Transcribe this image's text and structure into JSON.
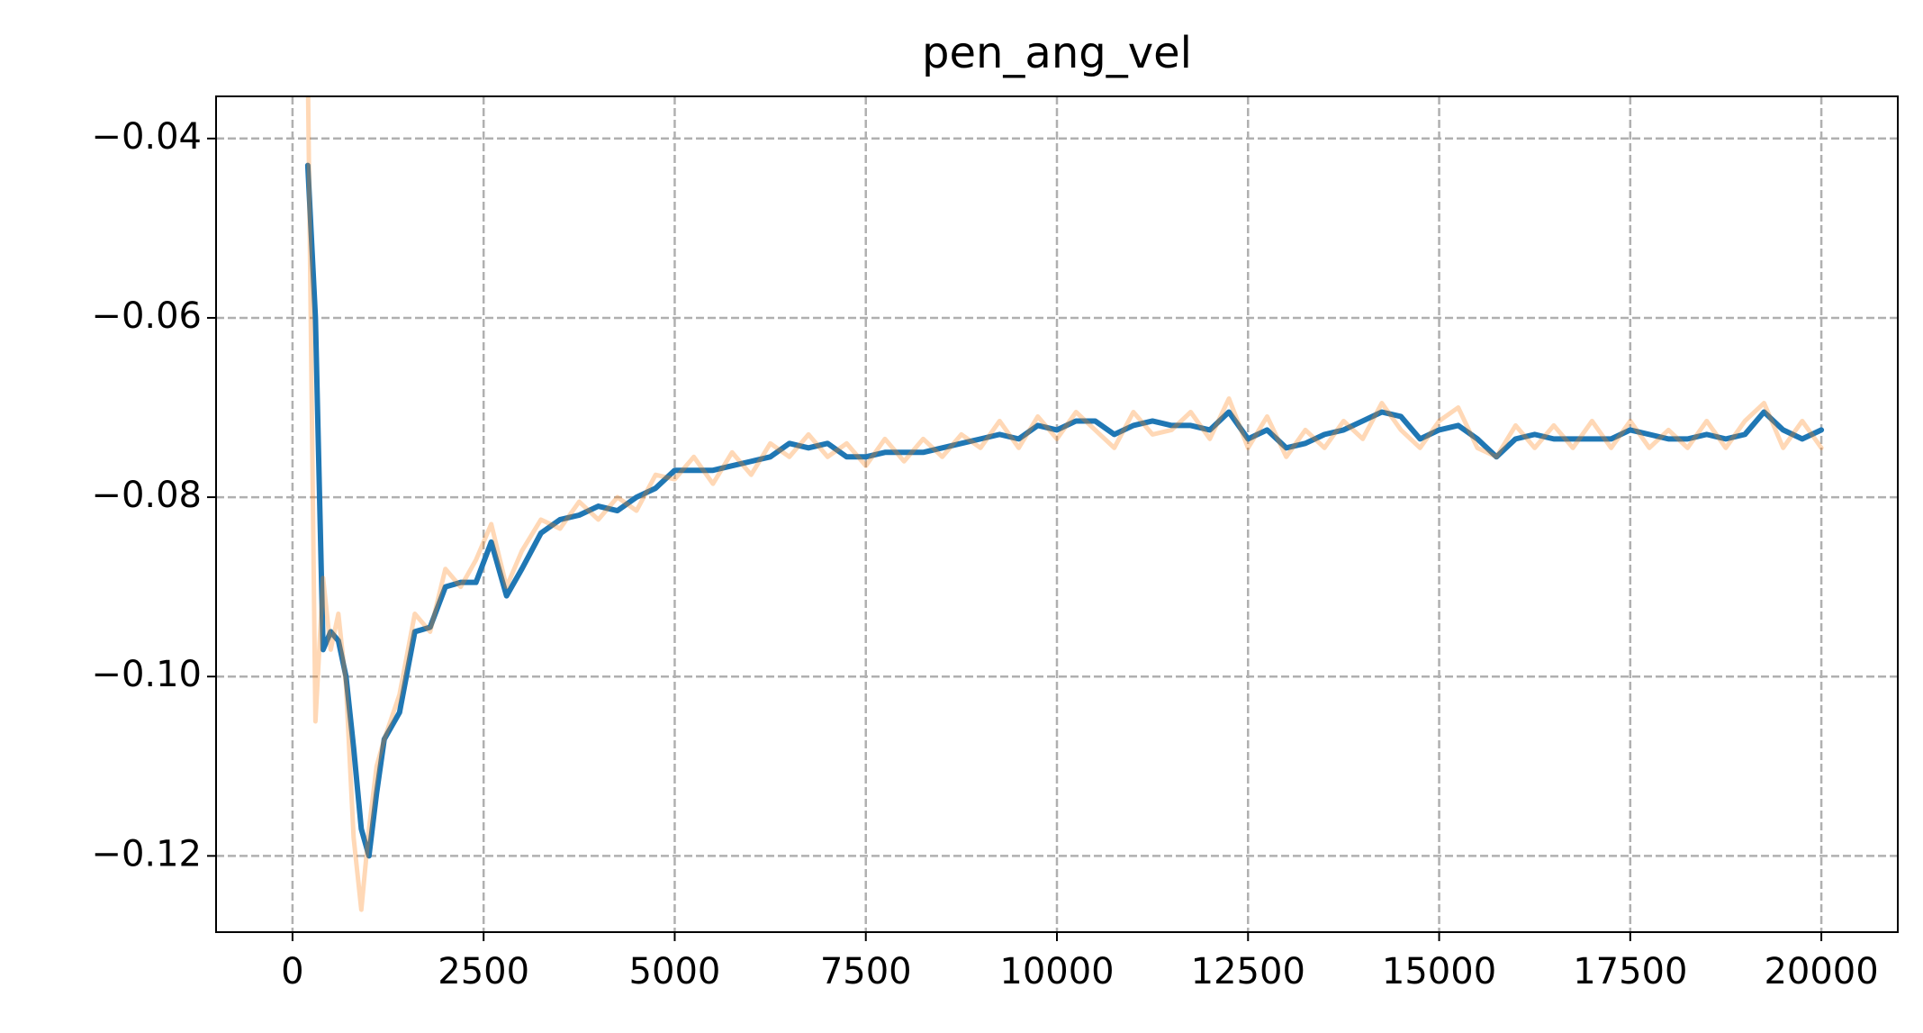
{
  "chart_data": {
    "type": "line",
    "title": "pen_ang_vel",
    "x": [
      200,
      300,
      400,
      500,
      600,
      700,
      800,
      900,
      1000,
      1100,
      1200,
      1400,
      1600,
      1800,
      2000,
      2200,
      2400,
      2600,
      2800,
      3000,
      3250,
      3500,
      3750,
      4000,
      4250,
      4500,
      4750,
      5000,
      5250,
      5500,
      5750,
      6000,
      6250,
      6500,
      6750,
      7000,
      7250,
      7500,
      7750,
      8000,
      8250,
      8500,
      8750,
      9000,
      9250,
      9500,
      9750,
      10000,
      10250,
      10500,
      10750,
      11000,
      11250,
      11500,
      11750,
      12000,
      12250,
      12500,
      12750,
      13000,
      13250,
      13500,
      13750,
      14000,
      14250,
      14500,
      14750,
      15000,
      15250,
      15500,
      15750,
      16000,
      16250,
      16500,
      16750,
      17000,
      17250,
      17500,
      17750,
      18000,
      18250,
      18500,
      18750,
      19000,
      19250,
      19500,
      19750,
      20000
    ],
    "series": [
      {
        "color": "#1f77b4",
        "alpha": 1,
        "values": [
          -0.043,
          -0.06,
          -0.097,
          -0.095,
          -0.096,
          -0.1,
          -0.108,
          -0.117,
          -0.12,
          -0.113,
          -0.107,
          -0.104,
          -0.095,
          -0.0945,
          -0.09,
          -0.0895,
          -0.0895,
          -0.085,
          -0.091,
          -0.088,
          -0.084,
          -0.0825,
          -0.082,
          -0.081,
          -0.0815,
          -0.08,
          -0.079,
          -0.077,
          -0.077,
          -0.077,
          -0.0765,
          -0.076,
          -0.0755,
          -0.074,
          -0.0745,
          -0.074,
          -0.0755,
          -0.0755,
          -0.075,
          -0.075,
          -0.075,
          -0.0745,
          -0.074,
          -0.0735,
          -0.073,
          -0.0735,
          -0.072,
          -0.0725,
          -0.0715,
          -0.0715,
          -0.073,
          -0.072,
          -0.0715,
          -0.072,
          -0.072,
          -0.0725,
          -0.0705,
          -0.0735,
          -0.0725,
          -0.0745,
          -0.074,
          -0.073,
          -0.0725,
          -0.0715,
          -0.0705,
          -0.071,
          -0.0735,
          -0.0725,
          -0.072,
          -0.0735,
          -0.0755,
          -0.0735,
          -0.073,
          -0.0735,
          -0.0735,
          -0.0735,
          -0.0735,
          -0.0725,
          -0.073,
          -0.0735,
          -0.0735,
          -0.073,
          -0.0735,
          -0.073,
          -0.0705,
          -0.0725,
          -0.0735,
          -0.0725
        ]
      },
      {
        "color": "#ff7f0e",
        "alpha": 0.3,
        "values": [
          -0.032,
          -0.105,
          -0.089,
          -0.097,
          -0.093,
          -0.101,
          -0.118,
          -0.126,
          -0.117,
          -0.11,
          -0.107,
          -0.102,
          -0.093,
          -0.095,
          -0.088,
          -0.09,
          -0.087,
          -0.083,
          -0.09,
          -0.086,
          -0.0825,
          -0.0835,
          -0.0805,
          -0.0825,
          -0.08,
          -0.0815,
          -0.0775,
          -0.078,
          -0.0755,
          -0.0785,
          -0.075,
          -0.0775,
          -0.074,
          -0.0755,
          -0.073,
          -0.0755,
          -0.074,
          -0.0765,
          -0.0735,
          -0.076,
          -0.0735,
          -0.0755,
          -0.073,
          -0.0745,
          -0.0715,
          -0.0745,
          -0.071,
          -0.0735,
          -0.0705,
          -0.0725,
          -0.0745,
          -0.0705,
          -0.073,
          -0.0725,
          -0.0705,
          -0.0735,
          -0.069,
          -0.0745,
          -0.071,
          -0.0755,
          -0.0725,
          -0.0745,
          -0.0715,
          -0.0735,
          -0.0695,
          -0.0725,
          -0.0745,
          -0.0715,
          -0.07,
          -0.0745,
          -0.0755,
          -0.072,
          -0.0745,
          -0.072,
          -0.0745,
          -0.0715,
          -0.0745,
          -0.0715,
          -0.0745,
          -0.0725,
          -0.0745,
          -0.0715,
          -0.0745,
          -0.0715,
          -0.0695,
          -0.0745,
          -0.0715,
          -0.0745
        ]
      }
    ],
    "xlim": [
      -1000,
      21000
    ],
    "ylim": [
      -0.1285,
      -0.0353
    ],
    "xticks": [
      0,
      2500,
      5000,
      7500,
      10000,
      12500,
      15000,
      17500,
      20000
    ],
    "yticks": [
      {
        "value": -0.12,
        "label": "−0.12"
      },
      {
        "value": -0.1,
        "label": "−0.10"
      },
      {
        "value": -0.08,
        "label": "−0.08"
      },
      {
        "value": -0.06,
        "label": "−0.06"
      },
      {
        "value": -0.04,
        "label": "−0.04"
      }
    ],
    "grid": true
  }
}
